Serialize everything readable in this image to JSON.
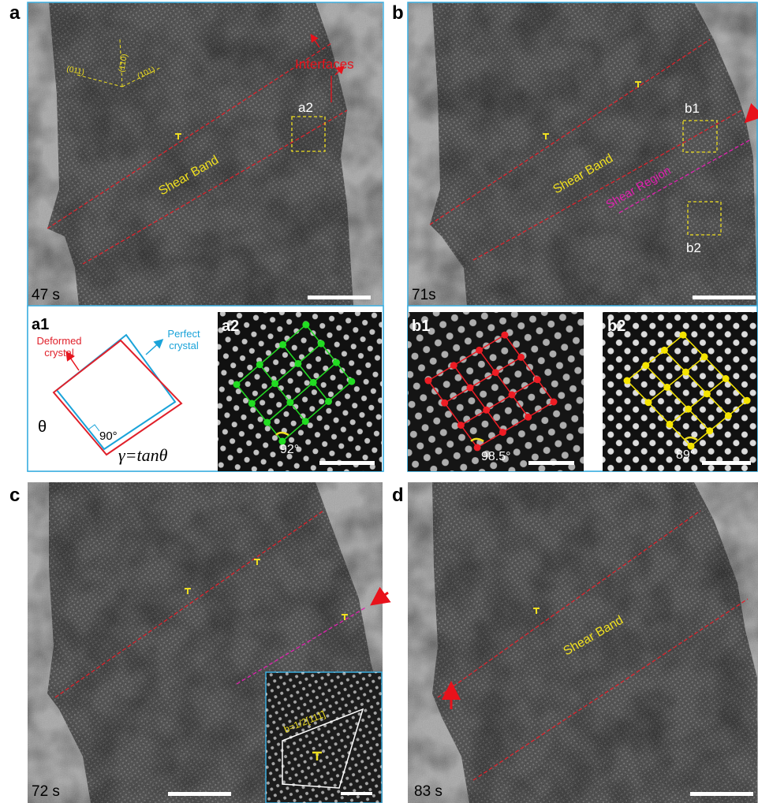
{
  "panels": {
    "a": {
      "label": "a",
      "time": "47 s",
      "interfaces": "Interfaces",
      "shear_band": "Shear Band",
      "box": "a2",
      "planes": [
        "(011)",
        "(1̄10)",
        "(101)"
      ]
    },
    "a1": {
      "label": "a1",
      "deformed": [
        "Deformed",
        "crystal"
      ],
      "perfect": [
        "Perfect",
        "crystal"
      ],
      "theta": "θ",
      "right_angle": "90°",
      "formula": "γ=tanθ"
    },
    "a2": {
      "label": "a2",
      "angle": "92°"
    },
    "b": {
      "label": "b",
      "time": "71s",
      "shear_band": "Shear Band",
      "shear_region": "Shear Region",
      "box1": "b1",
      "box2": "b2"
    },
    "b1": {
      "label": "b1",
      "angle": "98.5°"
    },
    "b2": {
      "label": "b2",
      "angle": "89°"
    },
    "c": {
      "label": "c",
      "time": "72 s",
      "burgers": "b=1/2[111̄]"
    },
    "d": {
      "label": "d",
      "time": "83 s",
      "shear_band": "Shear Band"
    }
  }
}
